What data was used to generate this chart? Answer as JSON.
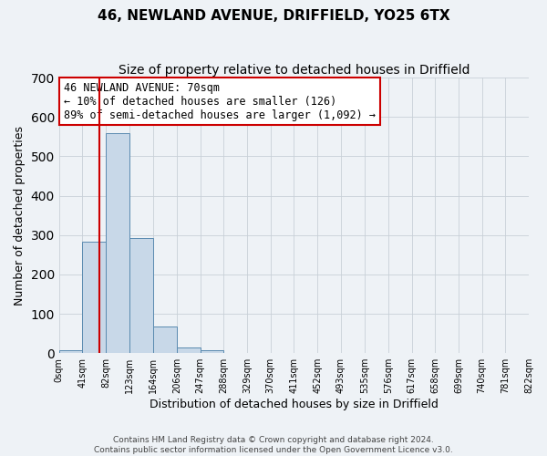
{
  "title": "46, NEWLAND AVENUE, DRIFFIELD, YO25 6TX",
  "subtitle": "Size of property relative to detached houses in Driffield",
  "xlabel": "Distribution of detached houses by size in Driffield",
  "ylabel": "Number of detached properties",
  "bin_edges": [
    0,
    41,
    82,
    123,
    164,
    206,
    247,
    288,
    329,
    370,
    411,
    452,
    493,
    535,
    576,
    617,
    658,
    699,
    740,
    781,
    822
  ],
  "bin_labels": [
    "0sqm",
    "41sqm",
    "82sqm",
    "123sqm",
    "164sqm",
    "206sqm",
    "247sqm",
    "288sqm",
    "329sqm",
    "370sqm",
    "411sqm",
    "452sqm",
    "493sqm",
    "535sqm",
    "576sqm",
    "617sqm",
    "658sqm",
    "699sqm",
    "740sqm",
    "781sqm",
    "822sqm"
  ],
  "bar_heights": [
    7,
    283,
    558,
    292,
    68,
    14,
    8,
    0,
    0,
    0,
    0,
    0,
    0,
    0,
    0,
    0,
    0,
    0,
    0,
    0
  ],
  "bar_color": "#c8d8e8",
  "bar_edgecolor": "#5a8ab0",
  "ylim": [
    0,
    700
  ],
  "yticks": [
    0,
    100,
    200,
    300,
    400,
    500,
    600,
    700
  ],
  "property_line_x": 70,
  "property_line_color": "#cc0000",
  "annotation_title": "46 NEWLAND AVENUE: 70sqm",
  "annotation_line1": "← 10% of detached houses are smaller (126)",
  "annotation_line2": "89% of semi-detached houses are larger (1,092) →",
  "annotation_box_color": "#ffffff",
  "annotation_box_edgecolor": "#cc0000",
  "footer_line1": "Contains HM Land Registry data © Crown copyright and database right 2024.",
  "footer_line2": "Contains public sector information licensed under the Open Government Licence v3.0.",
  "background_color": "#eef2f6",
  "plot_background_color": "#eef2f6",
  "grid_color": "#c8d0d8"
}
